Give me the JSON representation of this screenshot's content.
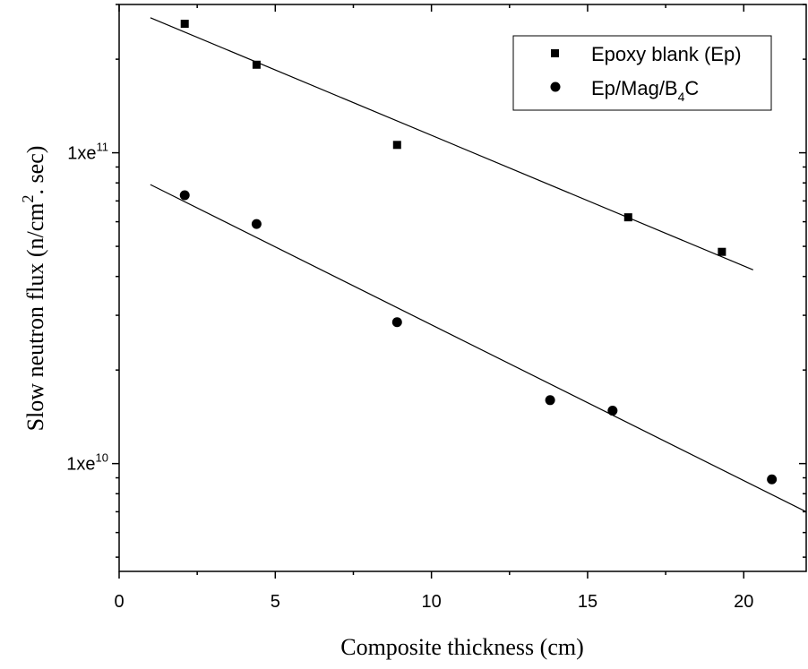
{
  "chart_data": {
    "type": "scatter",
    "x_label": "Composite thickness (cm)",
    "y_label": "Slow neutron flux (n/cm",
    "y_label_sup": "2",
    "y_label_tail": ". sec)",
    "y_scale": "log",
    "xlim": [
      0,
      22
    ],
    "ylim": [
      4500000000.0,
      300000000000.0
    ],
    "x_ticks": [
      0,
      5,
      10,
      15,
      20
    ],
    "y_ticks": [
      {
        "value": 10000000000.0,
        "base": "1xe",
        "exp": "10"
      },
      {
        "value": 100000000000.0,
        "base": "1xe",
        "exp": "11"
      }
    ],
    "grid": false,
    "legend_position": "top-right",
    "series": [
      {
        "name": "Epoxy blank (Ep)",
        "marker": "square",
        "x": [
          2.1,
          4.4,
          8.9,
          16.3,
          19.3
        ],
        "y": [
          260000000000.0,
          192000000000.0,
          106000000000.0,
          62000000000.0,
          48000000000.0
        ],
        "fit": {
          "x": [
            1.0,
            20.3
          ],
          "y": [
            272000000000.0,
            42000000000.0
          ]
        }
      },
      {
        "name": "Ep/Mag/B",
        "name_sub": "4",
        "name_tail": "C",
        "marker": "circle",
        "x": [
          2.1,
          4.4,
          8.9,
          13.8,
          15.8,
          20.9
        ],
        "y": [
          73000000000.0,
          59000000000.0,
          28500000000.0,
          16000000000.0,
          14800000000.0,
          8900000000.0
        ],
        "fit": {
          "x": [
            1.0,
            22.0
          ],
          "y": [
            79000000000.0,
            7000000000.0
          ]
        }
      }
    ]
  }
}
